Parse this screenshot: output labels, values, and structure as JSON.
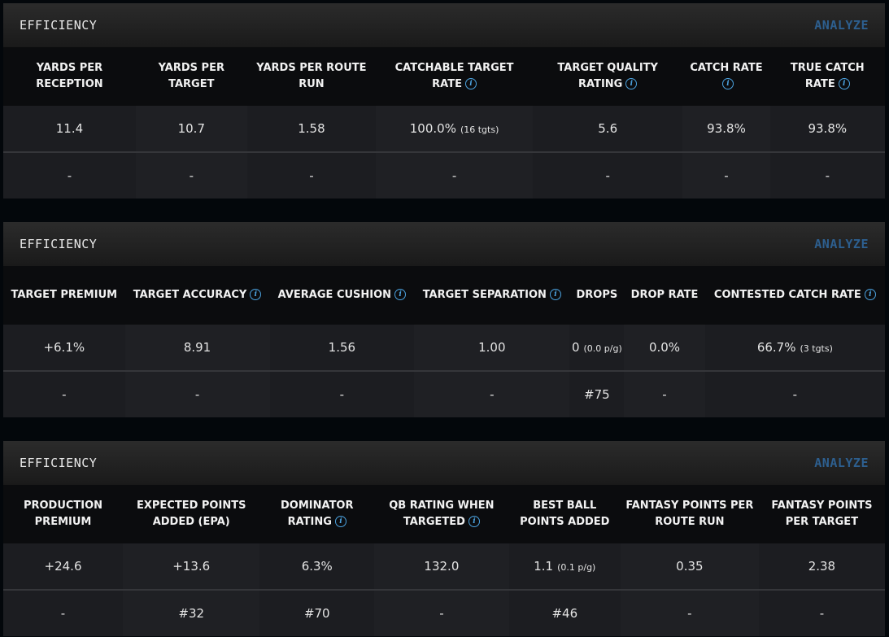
{
  "panels": [
    {
      "title": "EFFICIENCY",
      "action": "ANALYZE",
      "columns": [
        {
          "label": "YARDS PER RECEPTION",
          "info": false
        },
        {
          "label": "YARDS PER TARGET",
          "info": false
        },
        {
          "label": "YARDS PER ROUTE RUN",
          "info": false
        },
        {
          "label": "CATCHABLE TARGET RATE",
          "info": true
        },
        {
          "label": "TARGET QUALITY RATING",
          "info": true
        },
        {
          "label": "CATCH RATE",
          "info": true
        },
        {
          "label": "TRUE CATCH RATE",
          "info": true
        }
      ],
      "values": [
        {
          "v": "11.4"
        },
        {
          "v": "10.7"
        },
        {
          "v": "1.58"
        },
        {
          "v": "100.0%",
          "s": "(16 tgts)"
        },
        {
          "v": "5.6"
        },
        {
          "v": "93.8%"
        },
        {
          "v": "93.8%"
        }
      ],
      "ranks": [
        "-",
        "-",
        "-",
        "-",
        "-",
        "-",
        "-"
      ]
    },
    {
      "title": "EFFICIENCY",
      "action": "ANALYZE",
      "columns": [
        {
          "label": "TARGET PREMIUM",
          "info": false
        },
        {
          "label": "TARGET ACCURACY",
          "info": true
        },
        {
          "label": "AVERAGE CUSHION",
          "info": true
        },
        {
          "label": "TARGET SEPARATION",
          "info": true
        },
        {
          "label": "DROPS",
          "info": false
        },
        {
          "label": "DROP RATE",
          "info": false
        },
        {
          "label": "CONTESTED CATCH RATE",
          "info": true
        }
      ],
      "values": [
        {
          "v": "+6.1%"
        },
        {
          "v": "8.91"
        },
        {
          "v": "1.56"
        },
        {
          "v": "1.00"
        },
        {
          "v": "0",
          "s": "(0.0 p/g)"
        },
        {
          "v": "0.0%"
        },
        {
          "v": "66.7%",
          "s": "(3 tgts)"
        }
      ],
      "ranks": [
        "-",
        "-",
        "-",
        "-",
        "#75",
        "-",
        "-"
      ]
    },
    {
      "title": "EFFICIENCY",
      "action": "ANALYZE",
      "columns": [
        {
          "label": "PRODUCTION PREMIUM",
          "info": false
        },
        {
          "label": "EXPECTED POINTS ADDED (EPA)",
          "info": false
        },
        {
          "label": "DOMINATOR RATING",
          "info": true
        },
        {
          "label": "QB RATING WHEN TARGETED",
          "info": true
        },
        {
          "label": "BEST BALL POINTS ADDED",
          "info": false
        },
        {
          "label": "FANTASY POINTS PER ROUTE RUN",
          "info": false
        },
        {
          "label": "FANTASY POINTS PER TARGET",
          "info": false
        }
      ],
      "values": [
        {
          "v": "+24.6"
        },
        {
          "v": "+13.6"
        },
        {
          "v": "6.3%"
        },
        {
          "v": "132.0"
        },
        {
          "v": "1.1",
          "s": "(0.1 p/g)"
        },
        {
          "v": "0.35"
        },
        {
          "v": "2.38"
        }
      ],
      "ranks": [
        "-",
        "#32",
        "#70",
        "-",
        "#46",
        "-",
        "-"
      ]
    }
  ],
  "colors": {
    "accent": "#4ca3e0",
    "analyze": "#2d5f8f",
    "background": "#03070b"
  },
  "icons": {
    "info": "info-circle-icon"
  }
}
